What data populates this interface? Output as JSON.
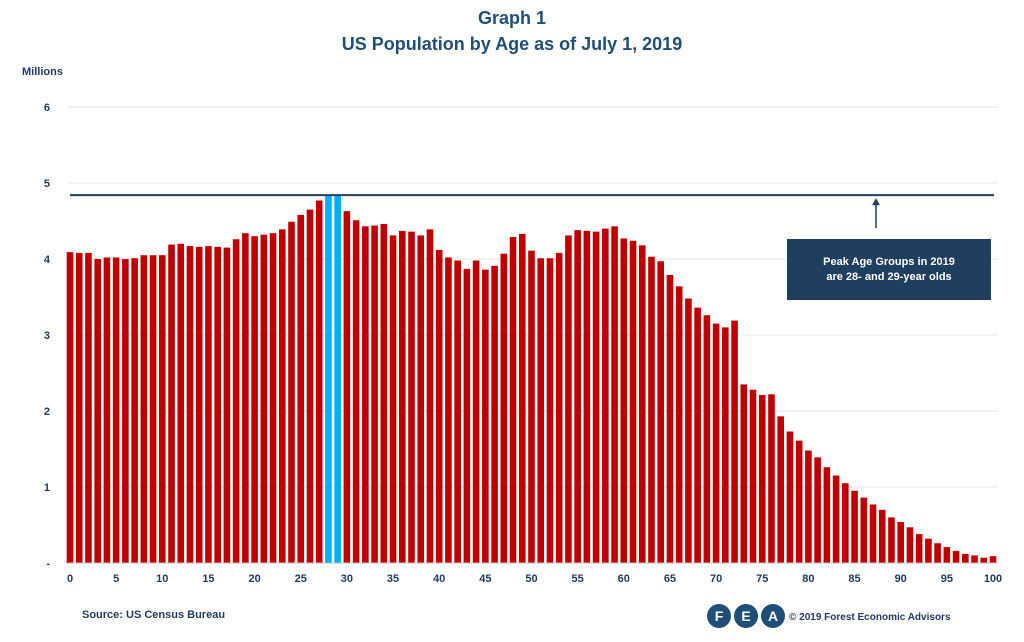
{
  "chart_data": {
    "type": "bar",
    "title": "Graph 1",
    "subtitle": "US Population by Age as of July 1, 2019",
    "ylabel": "Millions",
    "xlabel": "",
    "ylim": [
      0,
      6
    ],
    "y_ticks": [
      "-",
      "1",
      "2",
      "3",
      "4",
      "5",
      "6"
    ],
    "x_tick_labels": [
      "0",
      "5",
      "10",
      "15",
      "20",
      "25",
      "30",
      "35",
      "40",
      "45",
      "50",
      "55",
      "60",
      "65",
      "70",
      "75",
      "80",
      "85",
      "90",
      "95",
      "100"
    ],
    "grid": true,
    "peak_line_value": 4.84,
    "highlight_ages": [
      28,
      29
    ],
    "colors": {
      "bar": "#c00000",
      "highlight": "#00b0f0",
      "peak_line": "#203f5f"
    },
    "categories": [
      0,
      1,
      2,
      3,
      4,
      5,
      6,
      7,
      8,
      9,
      10,
      11,
      12,
      13,
      14,
      15,
      16,
      17,
      18,
      19,
      20,
      21,
      22,
      23,
      24,
      25,
      26,
      27,
      28,
      29,
      30,
      31,
      32,
      33,
      34,
      35,
      36,
      37,
      38,
      39,
      40,
      41,
      42,
      43,
      44,
      45,
      46,
      47,
      48,
      49,
      50,
      51,
      52,
      53,
      54,
      55,
      56,
      57,
      58,
      59,
      60,
      61,
      62,
      63,
      64,
      65,
      66,
      67,
      68,
      69,
      70,
      71,
      72,
      73,
      74,
      75,
      76,
      77,
      78,
      79,
      80,
      81,
      82,
      83,
      84,
      85,
      86,
      87,
      88,
      89,
      90,
      91,
      92,
      93,
      94,
      95,
      96,
      97,
      98,
      99,
      100
    ],
    "values": [
      4.09,
      4.08,
      4.08,
      4.0,
      4.02,
      4.02,
      4.0,
      4.01,
      4.05,
      4.05,
      4.05,
      4.19,
      4.2,
      4.17,
      4.16,
      4.17,
      4.16,
      4.15,
      4.26,
      4.34,
      4.3,
      4.32,
      4.34,
      4.39,
      4.49,
      4.58,
      4.65,
      4.77,
      4.84,
      4.84,
      4.63,
      4.51,
      4.43,
      4.44,
      4.46,
      4.31,
      4.37,
      4.36,
      4.31,
      4.39,
      4.12,
      4.02,
      3.98,
      3.87,
      3.98,
      3.86,
      3.91,
      4.07,
      4.29,
      4.33,
      4.11,
      4.01,
      4.01,
      4.08,
      4.31,
      4.38,
      4.37,
      4.36,
      4.4,
      4.43,
      4.27,
      4.24,
      4.18,
      4.03,
      3.97,
      3.79,
      3.64,
      3.48,
      3.36,
      3.26,
      3.15,
      3.1,
      3.19,
      2.35,
      2.28,
      2.21,
      2.22,
      1.93,
      1.73,
      1.61,
      1.48,
      1.39,
      1.26,
      1.15,
      1.05,
      0.95,
      0.86,
      0.77,
      0.7,
      0.6,
      0.54,
      0.47,
      0.38,
      0.32,
      0.26,
      0.21,
      0.16,
      0.12,
      0.1,
      0.07,
      0.09
    ]
  },
  "callout": {
    "line1": "Peak Age Groups in 2019",
    "line2": "are 28- and 29-year olds"
  },
  "footer": {
    "source": "Source: US Census Bureau",
    "copyright": "© 2019 Forest Economic Advisors"
  },
  "logo": {
    "letters": [
      "F",
      "E",
      "A"
    ]
  }
}
